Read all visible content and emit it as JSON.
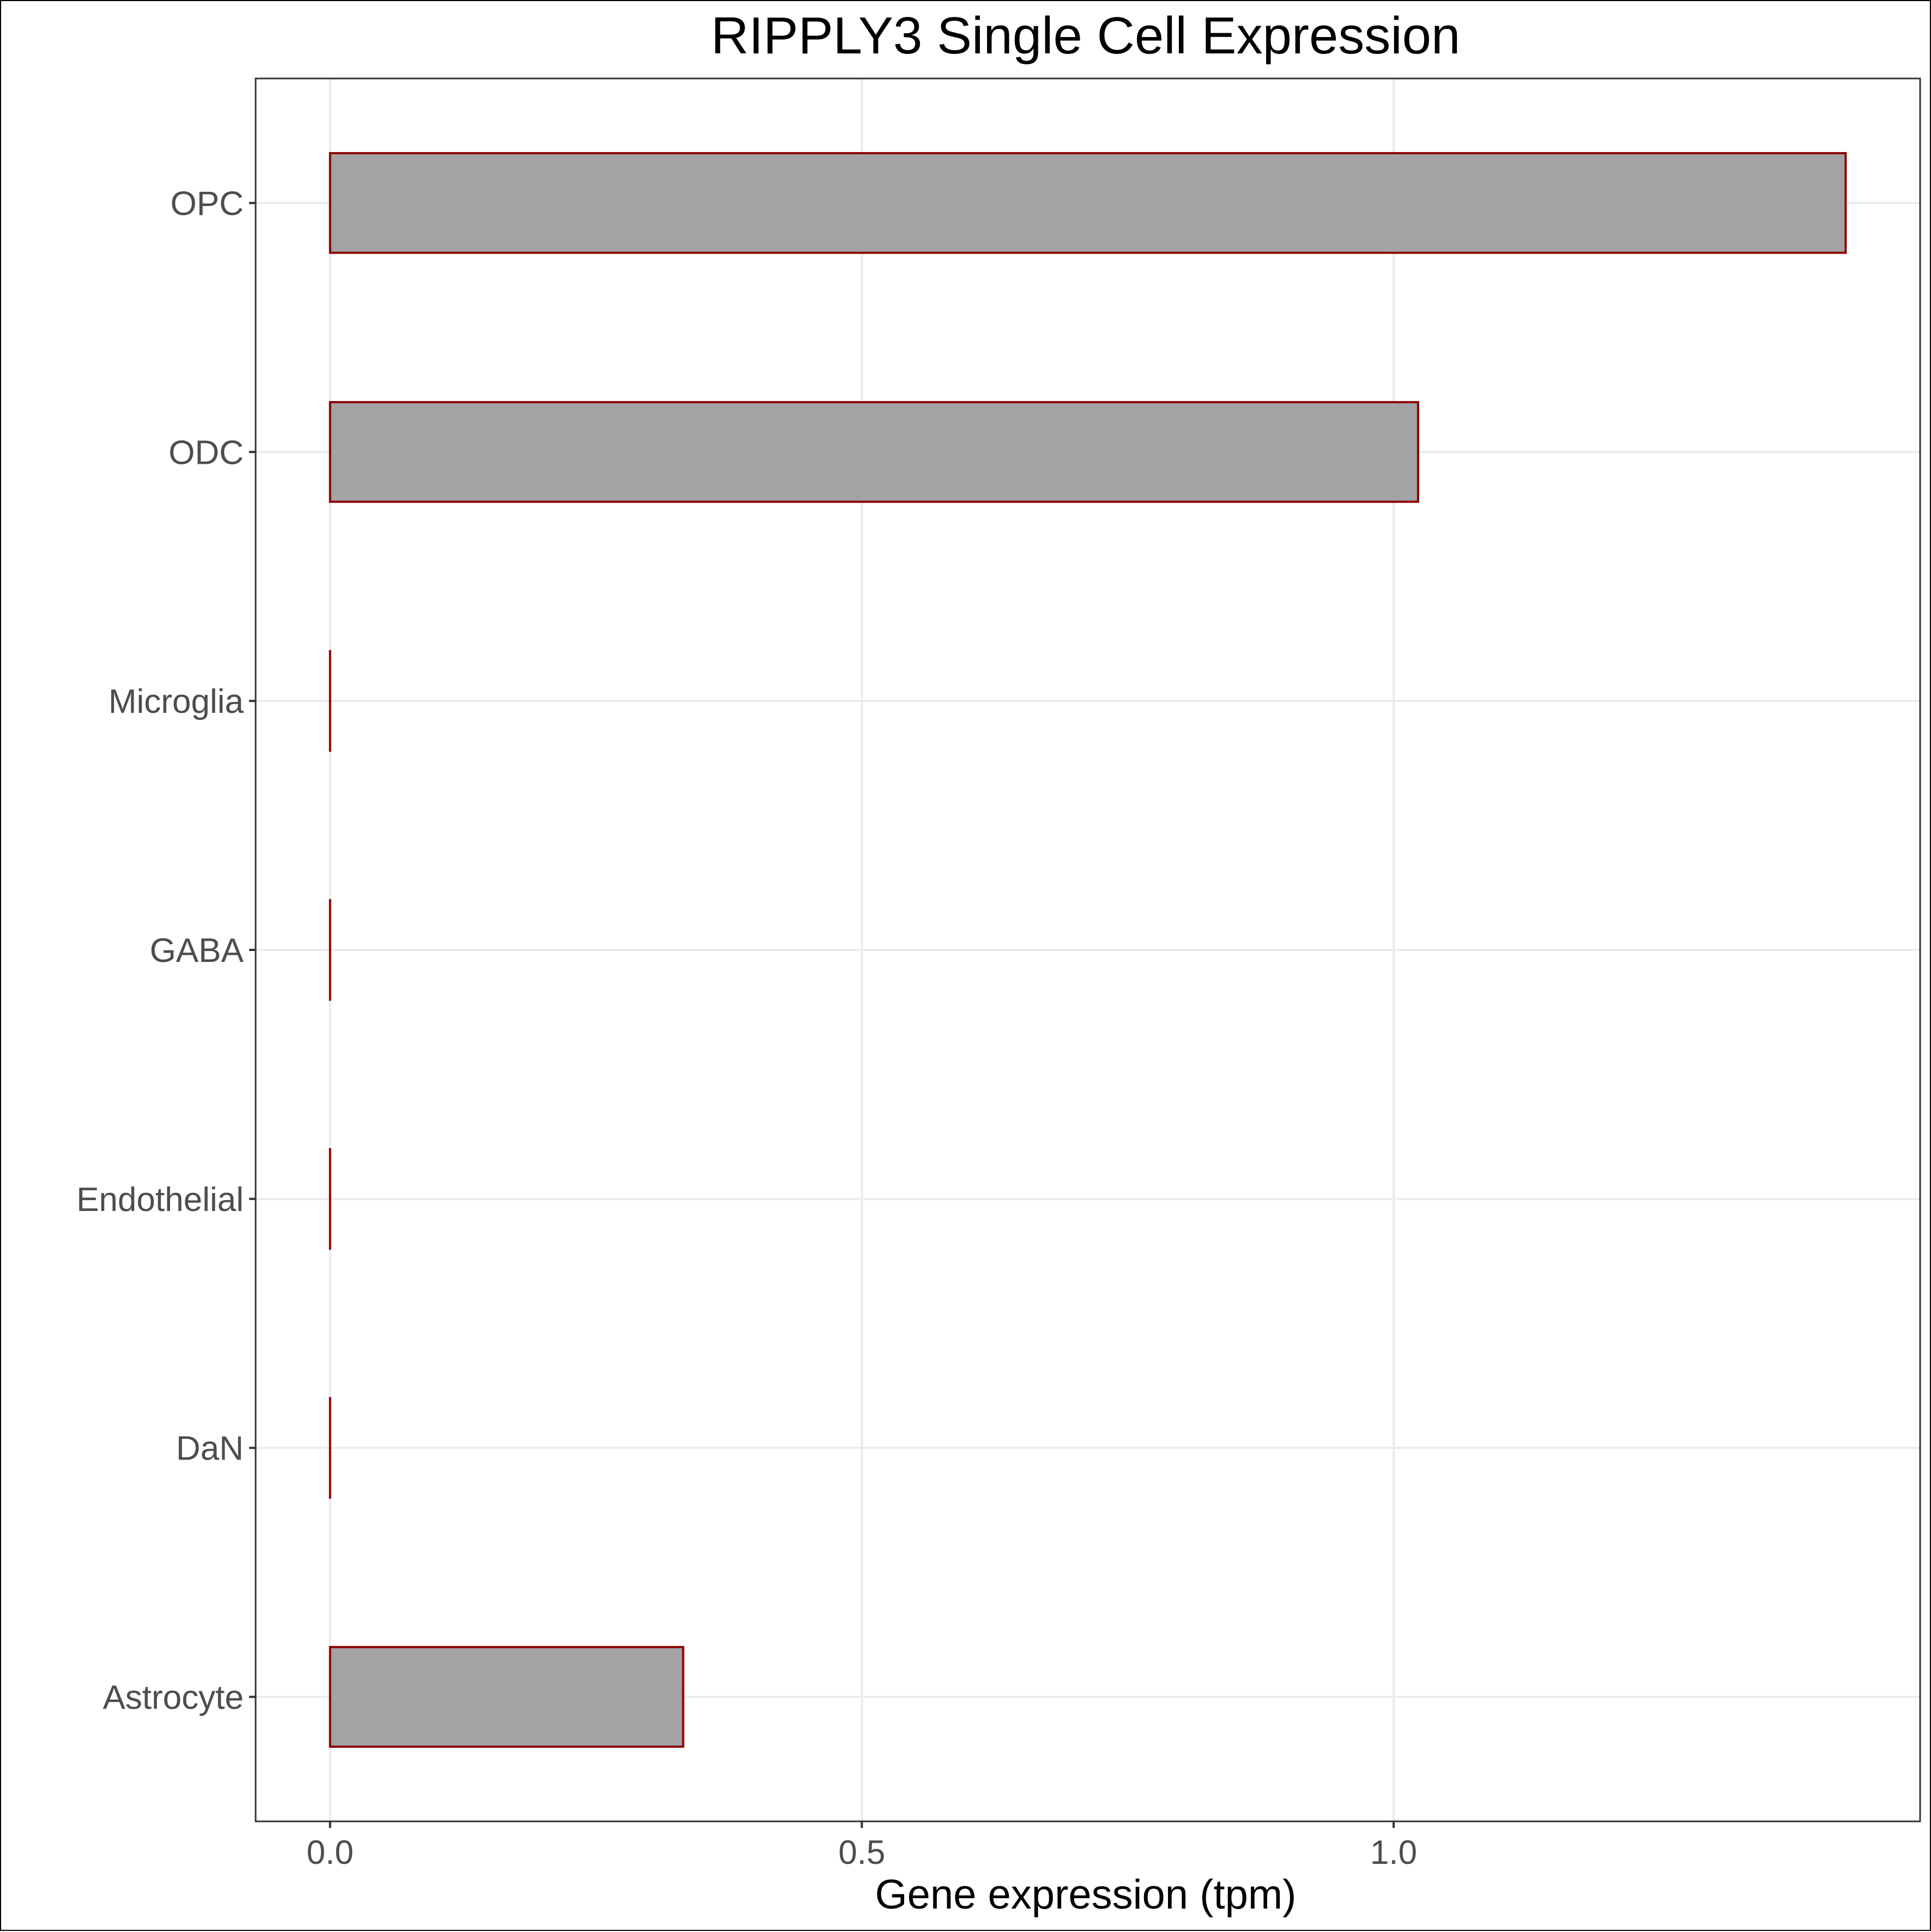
{
  "chart_data": {
    "type": "bar",
    "orientation": "horizontal",
    "title": "RIPPLY3 Single Cell Expression",
    "xlabel": "Gene expression (tpm)",
    "ylabel": "",
    "categories": [
      "OPC",
      "ODC",
      "Microglia",
      "GABA",
      "Endothelial",
      "DaN",
      "Astrocyte"
    ],
    "values": [
      1.425,
      1.023,
      0.0,
      0.0,
      0.0,
      0.0,
      0.332
    ],
    "xlim": [
      -0.07,
      1.495
    ],
    "xticks": [
      0.0,
      0.5,
      1.0
    ],
    "xtick_labels": [
      "0.0",
      "0.5",
      "1.0"
    ],
    "grid": true,
    "legend": "none",
    "colors": {
      "bar_fill": "#a3a3a3",
      "bar_outline": "#8b0000",
      "grid": "#ebebeb",
      "panel_border": "#333333"
    }
  }
}
